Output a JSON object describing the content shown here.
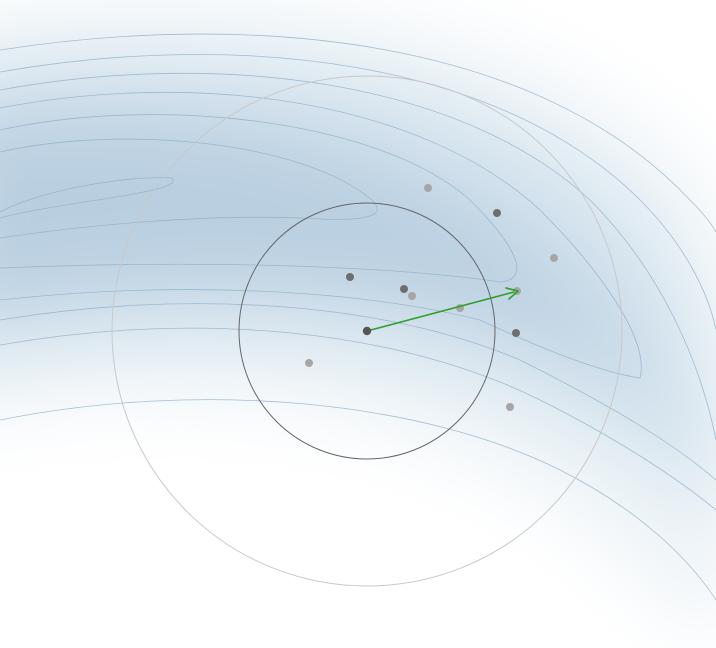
{
  "diagram": {
    "colors": {
      "background": "#ffffff",
      "field_dark": "#b9cfe0",
      "field_mid": "#d3e2ed",
      "field_light": "#eef4f8",
      "contour": "#8fb0c8",
      "inner_ring": "#666666",
      "outer_ring": "#c8c8c8",
      "arrow": "#2ca02c",
      "center_point": "#555555",
      "sample_dark": "#6e6e6e",
      "sample_light": "#a6a6a6"
    },
    "elements": [
      "blue-gradient-field",
      "contour-lines",
      "inner-trust-region-circle",
      "outer-trust-region-circle",
      "center-point",
      "step-arrow",
      "sample-points"
    ]
  }
}
